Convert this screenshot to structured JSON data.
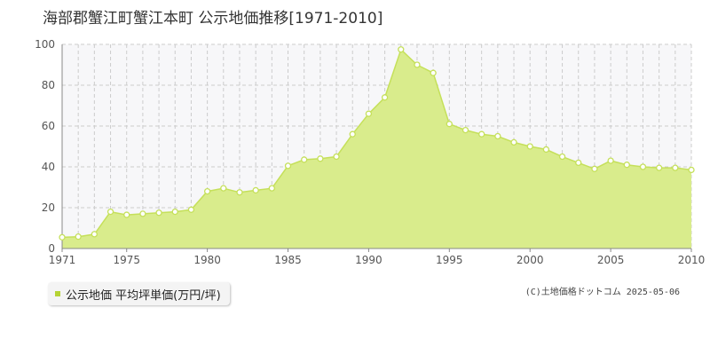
{
  "title": "海部郡蟹江町蟹江本町 公示地価推移[1971-2010]",
  "copyright": "(C)土地価格ドットコム 2025-05-06",
  "colors": {
    "area_fill": "#d9ec8c",
    "line": "#c5e05a",
    "marker_fill": "#ffffff",
    "marker_stroke": "#c5e05a",
    "legend_swatch": "#b5d334",
    "grid": "#cccccc",
    "plot_bg": "#f7f7f9",
    "axis": "#888888"
  },
  "chart_data": {
    "type": "area",
    "title": "海部郡蟹江町蟹江本町 公示地価推移[1971-2010]",
    "xlabel": "",
    "ylabel": "",
    "x": [
      1971,
      1972,
      1973,
      1974,
      1975,
      1976,
      1977,
      1978,
      1979,
      1980,
      1981,
      1982,
      1983,
      1984,
      1985,
      1986,
      1987,
      1988,
      1989,
      1990,
      1991,
      1992,
      1993,
      1994,
      1995,
      1996,
      1997,
      1998,
      1999,
      2000,
      2001,
      2002,
      2003,
      2004,
      2005,
      2006,
      2007,
      2008,
      2009,
      2010
    ],
    "series": [
      {
        "name": "公示地価 平均坪単価(万円/坪)",
        "values": [
          5.5,
          5.8,
          7,
          18,
          16.5,
          17,
          17.5,
          18,
          19,
          28,
          29.5,
          27.5,
          28.5,
          29.5,
          40.5,
          43.5,
          44,
          45,
          56,
          66,
          74,
          97.5,
          90,
          86,
          61,
          58,
          56,
          55,
          52,
          50,
          48.5,
          45,
          42,
          39,
          43,
          41,
          40,
          39.5,
          39.5,
          38.5
        ]
      }
    ],
    "xlim": [
      1971,
      2010
    ],
    "ylim": [
      0,
      100
    ],
    "x_ticks": [
      1971,
      1975,
      1980,
      1985,
      1990,
      1995,
      2000,
      2005,
      2010
    ],
    "y_ticks": [
      0,
      20,
      40,
      60,
      80,
      100
    ],
    "grid": true,
    "legend": {
      "position": "bottom-left",
      "entries": [
        "公示地価 平均坪単価(万円/坪)"
      ]
    }
  }
}
